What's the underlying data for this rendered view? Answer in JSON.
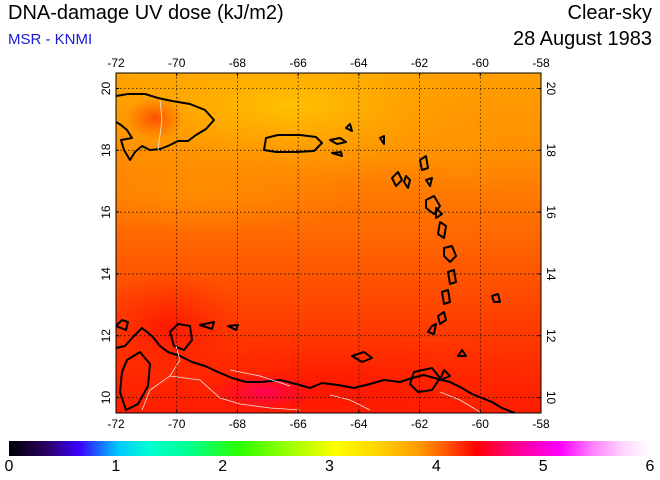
{
  "header": {
    "title": "DNA-damage UV dose (kJ/m2)",
    "source": "MSR - KNMI",
    "sky": "Clear-sky",
    "date": "28 August 1983"
  },
  "map": {
    "lon_ticks": [
      "-72",
      "-70",
      "-68",
      "-66",
      "-64",
      "-62",
      "-60",
      "-58"
    ],
    "lat_ticks": [
      "10",
      "12",
      "14",
      "16",
      "18",
      "20"
    ],
    "lon_range": [
      -72,
      -58
    ],
    "lat_range": [
      9.5,
      20.5
    ],
    "grid": true
  },
  "colorbar": {
    "ticks": [
      "0",
      "1",
      "2",
      "3",
      "4",
      "5",
      "6"
    ],
    "range": [
      0,
      6
    ]
  }
}
